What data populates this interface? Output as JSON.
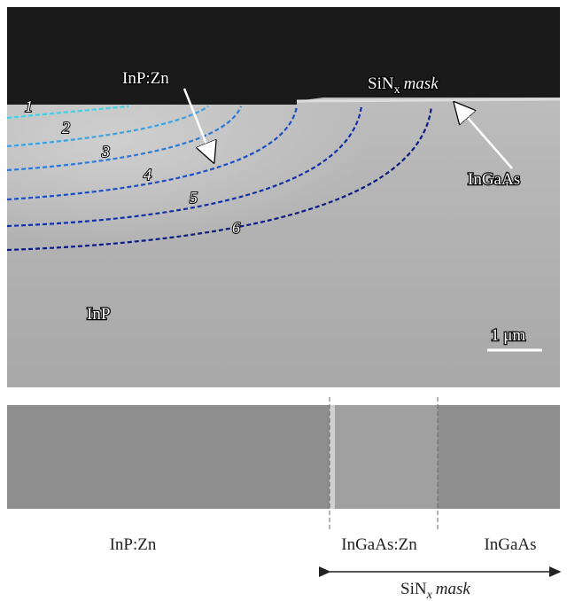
{
  "top_panel": {
    "labels": {
      "inp_zn": "InP:Zn",
      "mask": {
        "base": "SiN",
        "sub": "x",
        "italic": "mask"
      },
      "ingaas": "InGaAs",
      "inp": "InP",
      "scale_bar": "1 μm"
    },
    "curve_numbers": [
      "1",
      "2",
      "3",
      "4",
      "5",
      "6"
    ]
  },
  "bottom_panel": {
    "labels": [
      "InP:Zn",
      "InGaAs:Zn",
      "InGaAs"
    ],
    "mask": {
      "base": "SiN",
      "sub": "x",
      "italic": "mask"
    }
  }
}
